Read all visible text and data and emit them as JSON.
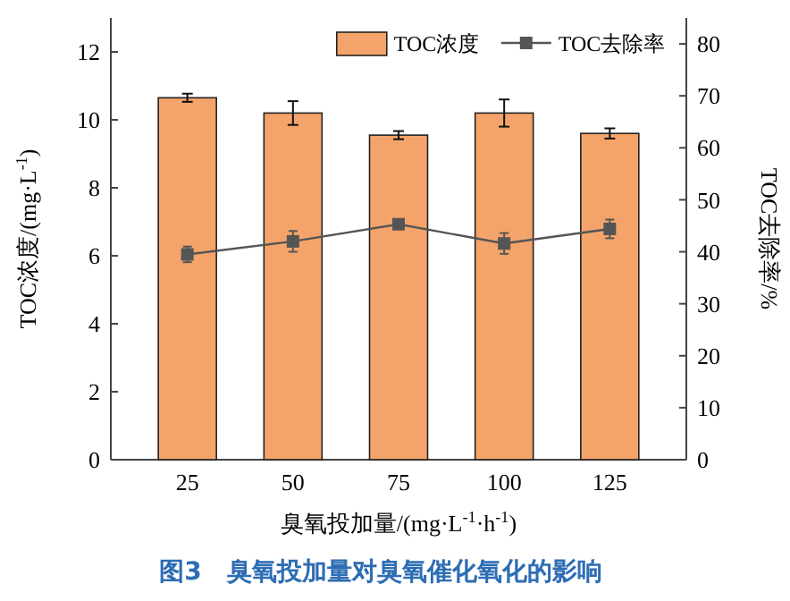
{
  "chart_data": {
    "type": "bar",
    "title": "图3　臭氧投加量对臭氧催化氧化的影响",
    "xlabel": "臭氧投加量/(mg·L$^{-1}$·h$^{-1}$)",
    "ylabel": "TOC浓度/(mg·L$^{-1}$)",
    "y2label": "TOC去除率/%",
    "categories": [
      "25",
      "50",
      "75",
      "100",
      "125"
    ],
    "series": [
      {
        "name": "TOC浓度",
        "color": "#f4a46a",
        "values": [
          10.65,
          10.2,
          9.55,
          10.2,
          9.6
        ],
        "errors": [
          0.12,
          0.35,
          0.12,
          0.4,
          0.15
        ]
      },
      {
        "name": "TOC去除率",
        "type": "line",
        "axis": "y2",
        "color": "#555555",
        "marker": "square",
        "values": [
          39.5,
          42,
          45.3,
          41.6,
          44.4
        ],
        "errors": [
          1.5,
          2,
          0.8,
          2,
          1.8
        ]
      }
    ],
    "ylim": [
      0,
      13
    ],
    "yticks": [
      0,
      2,
      4,
      6,
      8,
      10,
      12
    ],
    "y2lim": [
      0,
      85
    ],
    "y2ticks": [
      0,
      10,
      20,
      30,
      40,
      50,
      60,
      70,
      80
    ],
    "legend": "top right"
  }
}
